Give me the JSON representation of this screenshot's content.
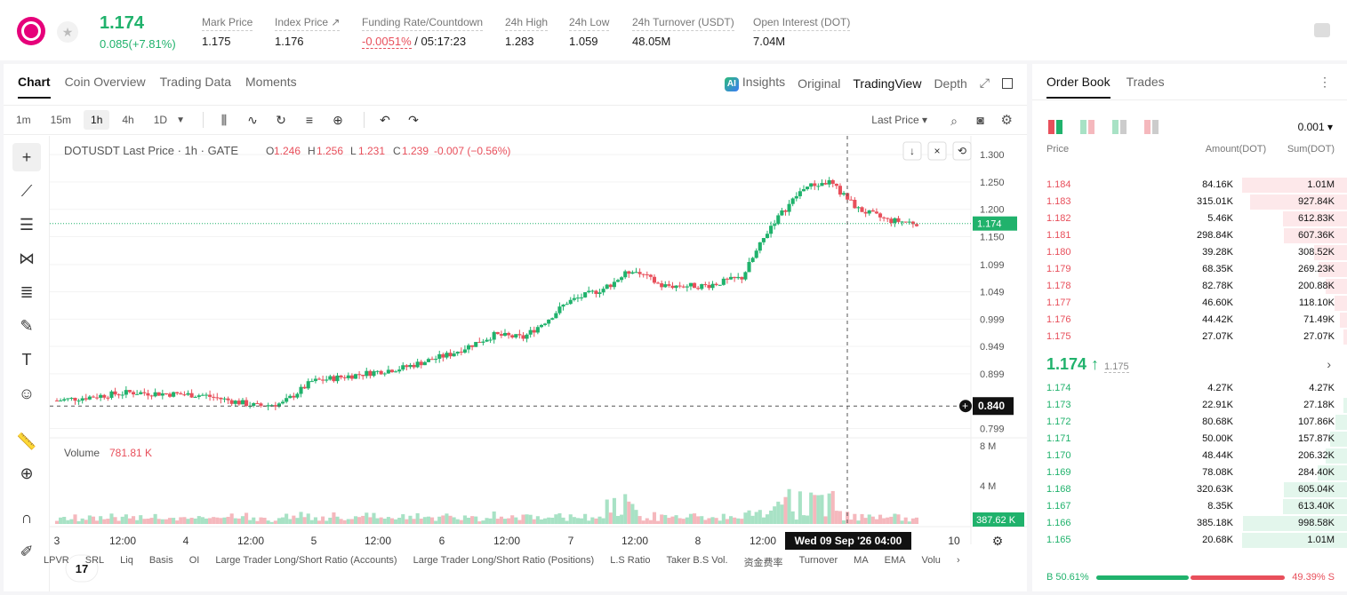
{
  "header": {
    "last_price": "1.174",
    "change": "0.085(+7.81%)",
    "stats": [
      {
        "label": "Mark Price",
        "value": "1.175"
      },
      {
        "label": "Index Price ↗",
        "value": "1.176"
      },
      {
        "label": "Funding Rate/Countdown",
        "value_red": "-0.0051%",
        "value": " / 05:17:23"
      },
      {
        "label": "24h High",
        "value": "1.283"
      },
      {
        "label": "24h Low",
        "value": "1.059"
      },
      {
        "label": "24h Turnover (USDT)",
        "value": "48.05M"
      },
      {
        "label": "Open Interest (DOT)",
        "value": "7.04M"
      }
    ]
  },
  "chart_tabs": [
    "Chart",
    "Coin Overview",
    "Trading Data",
    "Moments"
  ],
  "view_tabs": {
    "insights": "Insights",
    "ai_badge": "AI",
    "original": "Original",
    "tradingview": "TradingView",
    "depth": "Depth"
  },
  "timeframes": [
    "1m",
    "15m",
    "1h",
    "4h",
    "1D"
  ],
  "last_price_select": "Last Price",
  "chart_legend": {
    "symbol": "DOTUSDT Last Price · 1h · GATE",
    "o_label": "O",
    "o": "1.246",
    "h_label": "H",
    "h": "1.256",
    "l_label": "L",
    "l": "1.231",
    "c_label": "C",
    "c": "1.239",
    "chg": "-0.007 (−0.56%)"
  },
  "volume_legend": {
    "label": "Volume",
    "value": "781.81 K"
  },
  "crosshair_label": "Wed 09 Sep '26   04:00",
  "bottom_indicators": [
    "LPVR",
    "SRL",
    "Liq",
    "Basis",
    "OI",
    "Large Trader Long/Short Ratio (Accounts)",
    "Large Trader Long/Short Ratio (Positions)",
    "L.S Ratio",
    "Taker B.S Vol.",
    "资金费率",
    "Turnover",
    "MA",
    "EMA",
    "Volu"
  ],
  "chart_data": {
    "type": "candlestick",
    "y_ticks": [
      "1.300",
      "1.250",
      "1.200",
      "1.150",
      "1.099",
      "1.049",
      "0.999",
      "0.949",
      "0.899",
      "0.799"
    ],
    "ylim": [
      0.79,
      1.31
    ],
    "x_ticks": [
      "3",
      "12:00",
      "4",
      "12:00",
      "5",
      "12:00",
      "6",
      "12:00",
      "7",
      "12:00",
      "8",
      "12:00",
      "10"
    ],
    "last_price_label": "1.174",
    "crosshair_price_label": "0.840",
    "volume_ticks": [
      "8 M",
      "4 M"
    ],
    "volume_last_label": "387.62 K",
    "volume_max": 8.7
  },
  "orderbook": {
    "tabs": [
      "Order Book",
      "Trades"
    ],
    "precision": "0.001",
    "headers": [
      "Price",
      "Amount(DOT)",
      "Sum(DOT)"
    ],
    "asks": [
      {
        "price": "1.184",
        "amount": "84.16K",
        "sum": "1.01M",
        "depth": 1.0
      },
      {
        "price": "1.183",
        "amount": "315.01K",
        "sum": "927.84K",
        "depth": 0.92
      },
      {
        "price": "1.182",
        "amount": "5.46K",
        "sum": "612.83K",
        "depth": 0.61
      },
      {
        "price": "1.181",
        "amount": "298.84K",
        "sum": "607.36K",
        "depth": 0.6
      },
      {
        "price": "1.180",
        "amount": "39.28K",
        "sum": "308.52K",
        "depth": 0.31
      },
      {
        "price": "1.179",
        "amount": "68.35K",
        "sum": "269.23K",
        "depth": 0.27
      },
      {
        "price": "1.178",
        "amount": "82.78K",
        "sum": "200.88K",
        "depth": 0.2
      },
      {
        "price": "1.177",
        "amount": "46.60K",
        "sum": "118.10K",
        "depth": 0.12
      },
      {
        "price": "1.176",
        "amount": "44.42K",
        "sum": "71.49K",
        "depth": 0.07
      },
      {
        "price": "1.175",
        "amount": "27.07K",
        "sum": "27.07K",
        "depth": 0.03
      }
    ],
    "mid_price": "1.174 ↑",
    "mid_mark": "1.175",
    "bids": [
      {
        "price": "1.174",
        "amount": "4.27K",
        "sum": "4.27K",
        "depth": 0.0
      },
      {
        "price": "1.173",
        "amount": "22.91K",
        "sum": "27.18K",
        "depth": 0.03
      },
      {
        "price": "1.172",
        "amount": "80.68K",
        "sum": "107.86K",
        "depth": 0.11
      },
      {
        "price": "1.171",
        "amount": "50.00K",
        "sum": "157.87K",
        "depth": 0.16
      },
      {
        "price": "1.170",
        "amount": "48.44K",
        "sum": "206.32K",
        "depth": 0.2
      },
      {
        "price": "1.169",
        "amount": "78.08K",
        "sum": "284.40K",
        "depth": 0.28
      },
      {
        "price": "1.168",
        "amount": "320.63K",
        "sum": "605.04K",
        "depth": 0.6
      },
      {
        "price": "1.167",
        "amount": "8.35K",
        "sum": "613.40K",
        "depth": 0.61
      },
      {
        "price": "1.166",
        "amount": "385.18K",
        "sum": "998.58K",
        "depth": 0.99
      },
      {
        "price": "1.165",
        "amount": "20.68K",
        "sum": "1.01M",
        "depth": 1.0
      }
    ],
    "buy_ratio": "B 50.61%",
    "sell_ratio": "49.39% S"
  },
  "colors": {
    "up": "#20b26c",
    "down": "#e84f5b",
    "ask_bg": "#fde8ea",
    "bid_bg": "#e3f6ec"
  }
}
